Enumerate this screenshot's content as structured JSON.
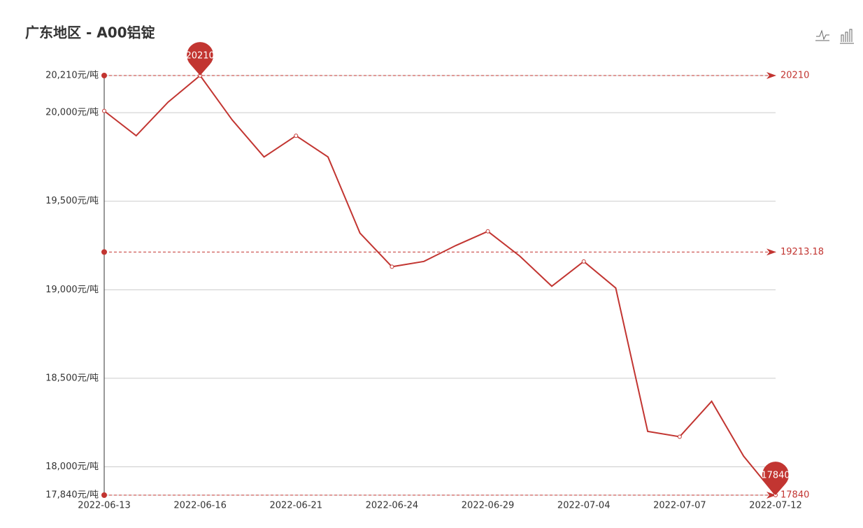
{
  "chart_data": {
    "type": "line",
    "title": "广东地区 - A00铝锭",
    "categories": [
      "2022-06-13",
      null,
      null,
      "2022-06-16",
      null,
      null,
      "2022-06-21",
      null,
      null,
      "2022-06-24",
      null,
      null,
      "2022-06-29",
      null,
      null,
      "2022-07-04",
      null,
      null,
      "2022-07-07",
      null,
      null,
      "2022-07-12"
    ],
    "series": [
      {
        "color": "#c23531",
        "values": [
          20010,
          19870,
          20060,
          20210,
          19960,
          19750,
          19870,
          19750,
          19320,
          19130,
          19160,
          19250,
          19330,
          19190,
          19020,
          19160,
          19010,
          18200,
          18170,
          18370,
          18060,
          17840
        ]
      }
    ],
    "ylim": [
      17840,
      20210
    ],
    "yticks": [
      {
        "value": 17840,
        "label": "17,840元/吨"
      },
      {
        "value": 18000,
        "label": "18,000元/吨"
      },
      {
        "value": 18500,
        "label": "18,500元/吨"
      },
      {
        "value": 19000,
        "label": "19,000元/吨"
      },
      {
        "value": 19500,
        "label": "19,500元/吨"
      },
      {
        "value": 20000,
        "label": "20,000元/吨"
      },
      {
        "value": 20210,
        "label": "20,210元/吨"
      }
    ],
    "grid": true,
    "mark_lines": [
      20210,
      19213.18,
      17840
    ],
    "mark_points": [
      20210,
      17840
    ]
  }
}
